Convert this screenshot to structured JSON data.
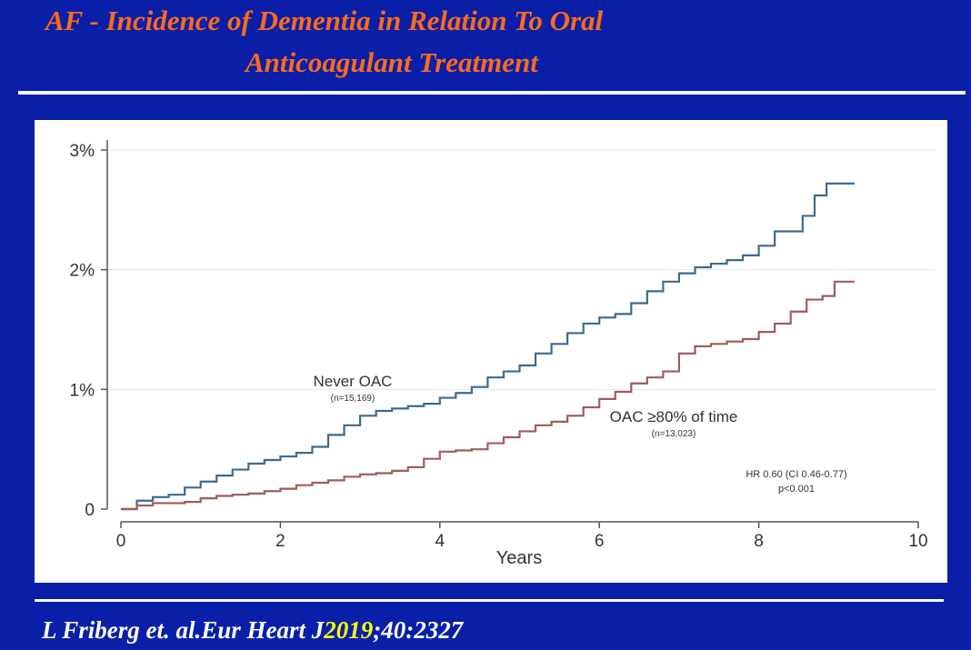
{
  "slide": {
    "title_line1": "AF - Incidence of Dementia in Relation To Oral",
    "title_line2": "Anticoagulant Treatment",
    "citation_pre": "L Friberg et. al.Eur Heart J",
    "citation_year": "2019",
    "citation_post": ";40:2327",
    "colors": {
      "background": "#0a1fa8",
      "title": "#ff6a1a",
      "citation_year": "#ffff00"
    }
  },
  "chart_data": {
    "type": "line",
    "title": "",
    "xlabel": "Years",
    "ylabel": "",
    "xlim": [
      0,
      10
    ],
    "ylim": [
      0,
      3
    ],
    "x_ticks": [
      0,
      2,
      4,
      6,
      8,
      10
    ],
    "x_tick_labels": [
      "0",
      "2",
      "4",
      "6",
      "8",
      "10"
    ],
    "y_ticks": [
      0,
      1,
      2,
      3
    ],
    "y_tick_labels": [
      "0",
      "1%",
      "2%",
      "3%"
    ],
    "grid": "horizontal",
    "series": [
      {
        "name": "Never OAC",
        "n_label": "(n=15,169)",
        "color": "#3d6a8f",
        "points": [
          [
            0,
            0
          ],
          [
            0.2,
            0.07
          ],
          [
            0.4,
            0.1
          ],
          [
            0.6,
            0.12
          ],
          [
            0.8,
            0.18
          ],
          [
            1,
            0.23
          ],
          [
            1.2,
            0.28
          ],
          [
            1.4,
            0.33
          ],
          [
            1.6,
            0.38
          ],
          [
            1.8,
            0.41
          ],
          [
            2,
            0.44
          ],
          [
            2.2,
            0.47
          ],
          [
            2.4,
            0.52
          ],
          [
            2.6,
            0.62
          ],
          [
            2.8,
            0.7
          ],
          [
            3,
            0.78
          ],
          [
            3.2,
            0.82
          ],
          [
            3.4,
            0.84
          ],
          [
            3.6,
            0.86
          ],
          [
            3.8,
            0.88
          ],
          [
            4,
            0.93
          ],
          [
            4.2,
            0.97
          ],
          [
            4.4,
            1.02
          ],
          [
            4.6,
            1.1
          ],
          [
            4.8,
            1.15
          ],
          [
            5,
            1.2
          ],
          [
            5.2,
            1.3
          ],
          [
            5.4,
            1.38
          ],
          [
            5.6,
            1.47
          ],
          [
            5.8,
            1.55
          ],
          [
            6,
            1.6
          ],
          [
            6.2,
            1.63
          ],
          [
            6.4,
            1.72
          ],
          [
            6.6,
            1.82
          ],
          [
            6.8,
            1.9
          ],
          [
            7,
            1.97
          ],
          [
            7.2,
            2.02
          ],
          [
            7.4,
            2.05
          ],
          [
            7.6,
            2.08
          ],
          [
            7.8,
            2.12
          ],
          [
            8,
            2.2
          ],
          [
            8.2,
            2.32
          ],
          [
            8.4,
            2.32
          ],
          [
            8.55,
            2.45
          ],
          [
            8.7,
            2.62
          ],
          [
            8.85,
            2.72
          ],
          [
            9.2,
            2.72
          ]
        ]
      },
      {
        "name": "OAC ≥80% of time",
        "n_label": "(n=13,023)",
        "color": "#a05a5a",
        "points": [
          [
            0,
            0
          ],
          [
            0.2,
            0.03
          ],
          [
            0.4,
            0.05
          ],
          [
            0.6,
            0.05
          ],
          [
            0.8,
            0.06
          ],
          [
            1,
            0.09
          ],
          [
            1.2,
            0.11
          ],
          [
            1.4,
            0.12
          ],
          [
            1.6,
            0.13
          ],
          [
            1.8,
            0.15
          ],
          [
            2,
            0.17
          ],
          [
            2.2,
            0.2
          ],
          [
            2.4,
            0.22
          ],
          [
            2.6,
            0.24
          ],
          [
            2.8,
            0.27
          ],
          [
            3,
            0.29
          ],
          [
            3.2,
            0.3
          ],
          [
            3.4,
            0.32
          ],
          [
            3.6,
            0.35
          ],
          [
            3.8,
            0.42
          ],
          [
            4,
            0.48
          ],
          [
            4.2,
            0.49
          ],
          [
            4.4,
            0.5
          ],
          [
            4.6,
            0.55
          ],
          [
            4.8,
            0.6
          ],
          [
            5,
            0.65
          ],
          [
            5.2,
            0.7
          ],
          [
            5.4,
            0.73
          ],
          [
            5.6,
            0.78
          ],
          [
            5.8,
            0.85
          ],
          [
            6,
            0.92
          ],
          [
            6.2,
            0.98
          ],
          [
            6.4,
            1.05
          ],
          [
            6.6,
            1.1
          ],
          [
            6.8,
            1.15
          ],
          [
            7,
            1.3
          ],
          [
            7.2,
            1.36
          ],
          [
            7.4,
            1.38
          ],
          [
            7.6,
            1.4
          ],
          [
            7.8,
            1.42
          ],
          [
            8,
            1.48
          ],
          [
            8.2,
            1.55
          ],
          [
            8.4,
            1.65
          ],
          [
            8.6,
            1.75
          ],
          [
            8.8,
            1.78
          ],
          [
            8.95,
            1.9
          ],
          [
            9.2,
            1.9
          ]
        ]
      }
    ],
    "annotations": [
      {
        "text": "HR 0.60 (CI 0.46-0.77)",
        "x": 8.3,
        "y": 0.3
      },
      {
        "text": "p<0.001",
        "x": 8.3,
        "y": 0.2
      }
    ]
  }
}
